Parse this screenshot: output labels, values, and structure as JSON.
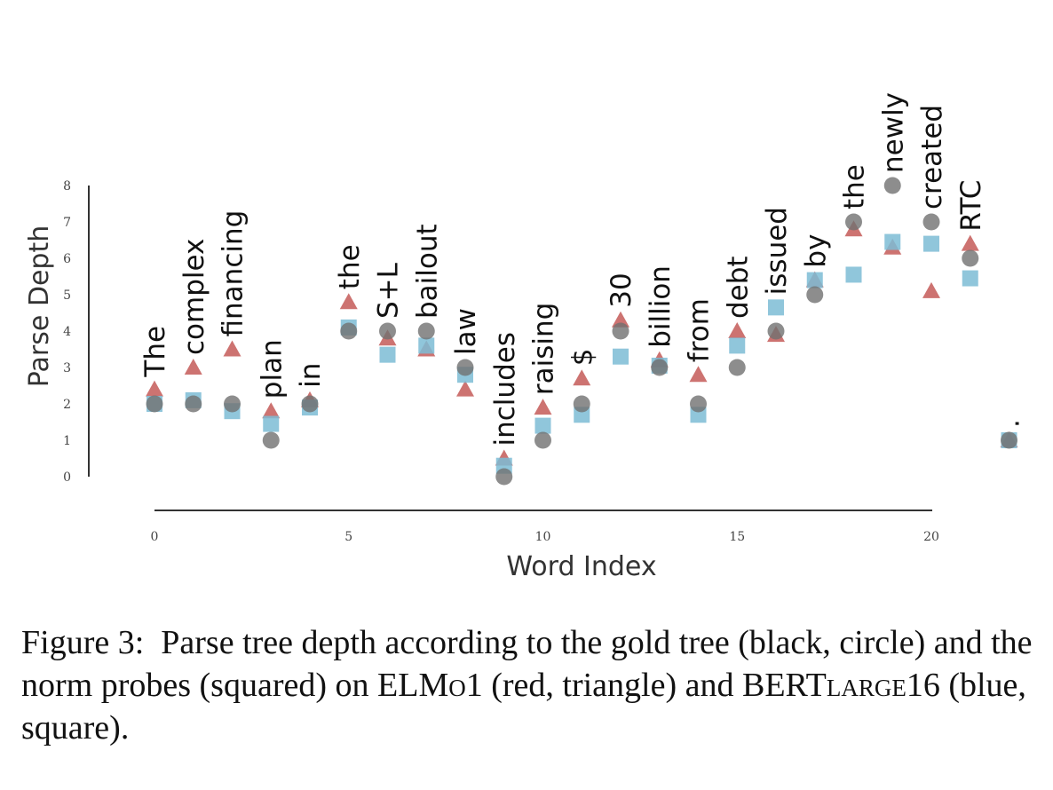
{
  "chart_data": {
    "type": "scatter",
    "xlabel": "Word Index",
    "ylabel": "Parse Depth",
    "xlim": [
      0,
      20
    ],
    "ylim": [
      0,
      8
    ],
    "xticks": [
      0,
      5,
      10,
      15,
      20
    ],
    "yticks": [
      0,
      1,
      2,
      3,
      4,
      5,
      6,
      7,
      8
    ],
    "grid": false,
    "words": [
      "The",
      "complex",
      "financing",
      "plan",
      "in",
      "the",
      "S+L",
      "bailout",
      "law",
      "includes",
      "raising",
      "$",
      "30",
      "billion",
      "from",
      "debt",
      "issued",
      "by",
      "the",
      "newly",
      "created",
      "RTC",
      "."
    ],
    "series": [
      {
        "name": "ELMo1",
        "marker": "triangle",
        "color": "#c0504d",
        "values": [
          2.4,
          3.0,
          3.5,
          1.8,
          2.1,
          4.8,
          3.8,
          3.5,
          2.4,
          0.5,
          1.9,
          2.7,
          4.3,
          3.2,
          2.8,
          4.0,
          3.9,
          5.4,
          6.8,
          6.3,
          5.1,
          6.4,
          1.0
        ]
      },
      {
        "name": "BERTlarge16",
        "marker": "square",
        "color": "#7dbcd5",
        "values": [
          2.0,
          2.1,
          1.8,
          1.45,
          1.9,
          4.1,
          3.35,
          3.6,
          2.8,
          0.3,
          1.4,
          1.7,
          3.3,
          3.05,
          1.7,
          3.6,
          4.65,
          5.4,
          5.55,
          6.45,
          6.4,
          5.45,
          1.0
        ]
      },
      {
        "name": "gold",
        "marker": "circle",
        "color": "#707070",
        "values": [
          2,
          2,
          2,
          1,
          2,
          4,
          4,
          4,
          3,
          0,
          1,
          2,
          4,
          3,
          2,
          3,
          4,
          5,
          7,
          8,
          7,
          6,
          1
        ]
      }
    ]
  },
  "caption": {
    "figure_label": "Figure 3:",
    "text_1": "Parse tree depth according to the gold tree (black, circle) and the norm probes (squared) on ",
    "elmo_main": "ELM",
    "elmo_small": "o",
    "elmo_layer": "1",
    "text_2": " (red, triangle) and ",
    "bert_main": "BERT",
    "bert_small": "large",
    "bert_layer": "16",
    "text_3": " (blue, square)."
  }
}
